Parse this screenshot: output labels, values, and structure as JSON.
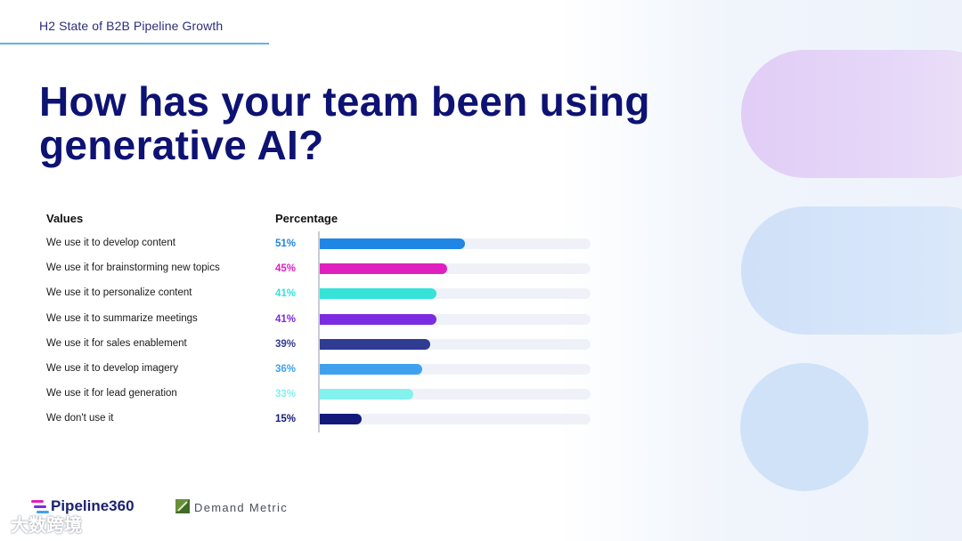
{
  "header": {
    "label": "H2 State of B2B Pipeline Growth"
  },
  "title": "How has your team been using generative AI?",
  "colors": {
    "title": "#0d1273",
    "track": "#eef2f8"
  },
  "chart_data": {
    "type": "bar",
    "orientation": "horizontal",
    "column_headers": {
      "category": "Values",
      "value": "Percentage"
    },
    "categories": [
      "We use it to develop content",
      "We use it for brainstorming new topics",
      "We use it to personalize content",
      "We use it to summarize meetings",
      "We use it for sales enablement",
      "We use it to develop imagery",
      "We use it for lead generation",
      "We don't use it"
    ],
    "values": [
      51,
      45,
      41,
      41,
      39,
      36,
      33,
      15
    ],
    "labels": [
      "51%",
      "45%",
      "41%",
      "41%",
      "39%",
      "36%",
      "33%",
      "15%"
    ],
    "colors": [
      "#1f86e6",
      "#e020be",
      "#35e3d9",
      "#7b2be0",
      "#2f3c92",
      "#3fa1ee",
      "#83f2ec",
      "#141a7c"
    ],
    "xlim": [
      0,
      95
    ],
    "grid": false,
    "legend": "none"
  },
  "footer": {
    "logo1": "Pipeline360",
    "logo2": "Demand Metric",
    "watermark": "大数跨境"
  }
}
